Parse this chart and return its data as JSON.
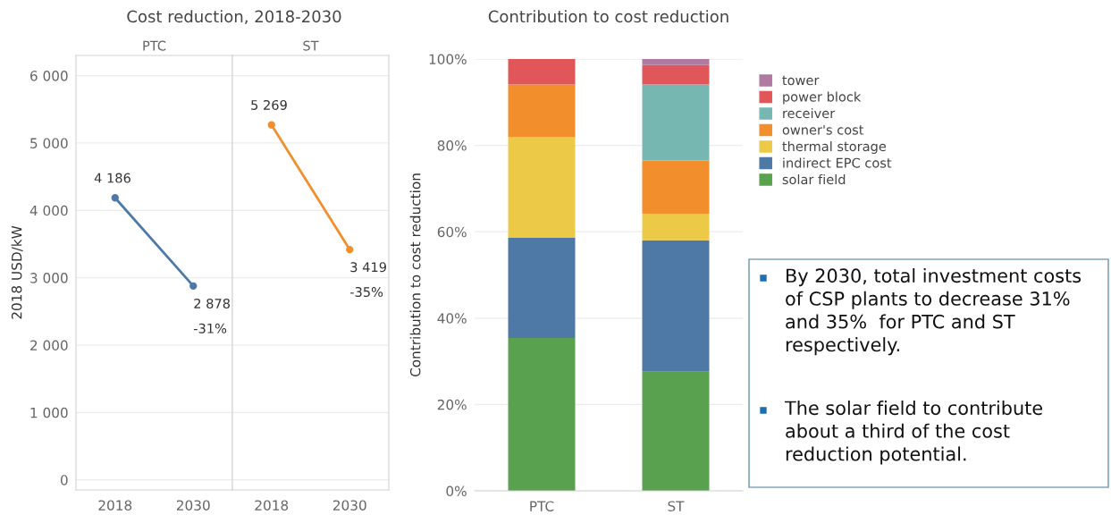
{
  "chart_data": [
    {
      "type": "line",
      "title": "Cost reduction, 2018-2030",
      "subtitle": "PTC",
      "ylabel": "2018 USD/kW",
      "categories": [
        "2018",
        "2030"
      ],
      "series": [
        {
          "color": "#4e79a7",
          "values": [
            4186,
            2878
          ],
          "value_labels": [
            "4 186",
            "2 878"
          ]
        }
      ],
      "annotations": [
        {
          "text": "-31%",
          "x": "2030",
          "y": 2878
        }
      ],
      "ylim": [
        -150,
        6300
      ],
      "yticks": [
        {
          "value": 0,
          "label": "0"
        },
        {
          "value": 1000,
          "label": "1 000"
        },
        {
          "value": 2000,
          "label": "2 000"
        },
        {
          "value": 3000,
          "label": "3 000"
        },
        {
          "value": 4000,
          "label": "4 000"
        },
        {
          "value": 5000,
          "label": "5 000"
        },
        {
          "value": 6000,
          "label": "6 000"
        }
      ],
      "grid": "y",
      "marker": "circle",
      "line_style": "solid"
    },
    {
      "type": "line",
      "subtitle": "ST",
      "categories": [
        "2018",
        "2030"
      ],
      "series": [
        {
          "color": "#f28e2b",
          "values": [
            5269,
            3419
          ],
          "value_labels": [
            "5 269",
            "3 419"
          ]
        }
      ],
      "annotations": [
        {
          "text": "-35%",
          "x": "2030",
          "y": 3419
        }
      ],
      "ylim": [
        -150,
        6300
      ],
      "yticks": [
        {
          "value": 0,
          "label": null
        },
        {
          "value": 1000,
          "label": null
        },
        {
          "value": 2000,
          "label": null
        },
        {
          "value": 3000,
          "label": null
        },
        {
          "value": 4000,
          "label": null
        },
        {
          "value": 5000,
          "label": null
        },
        {
          "value": 6000,
          "label": null
        }
      ],
      "tick_labels": "x",
      "grid": "y",
      "marker": "circle",
      "line_style": "solid"
    },
    {
      "type": "bar",
      "title": "Contribution to cost reduction",
      "ylabel": "Contribution to cost reduction",
      "categories": [
        "PTC",
        "ST"
      ],
      "stacked": true,
      "series": [
        {
          "name": "solar field",
          "color": "#59a14f",
          "values": [
            35.4,
            27.6
          ]
        },
        {
          "name": "indirect EPC cost",
          "color": "#4e79a7",
          "values": [
            23.2,
            30.4
          ]
        },
        {
          "name": "thermal storage",
          "color": "#edc948",
          "values": [
            23.3,
            6.2
          ]
        },
        {
          "name": "owner's cost",
          "color": "#f28e2b",
          "values": [
            12.2,
            12.3
          ]
        },
        {
          "name": "receiver",
          "color": "#76b7b2",
          "values": [
            null,
            17.6
          ]
        },
        {
          "name": "power block",
          "color": "#e15759",
          "values": [
            5.9,
            4.5
          ]
        },
        {
          "name": "tower",
          "color": "#b07aa1",
          "values": [
            null,
            1.4
          ]
        }
      ],
      "ylim": [
        0,
        100
      ],
      "yticks": [
        {
          "value": 0,
          "label": "0%"
        },
        {
          "value": 20,
          "label": "20%"
        },
        {
          "value": 40,
          "label": "40%"
        },
        {
          "value": 60,
          "label": "60%"
        },
        {
          "value": 80,
          "label": "80%"
        },
        {
          "value": 100,
          "label": "100%"
        }
      ],
      "grid": "y",
      "legend": "right",
      "annotations": [
        "By 2030, total investment costs\nof CSP plants to decrease 31%\nand 35%  for PTC and ST\nrespectively.",
        "The solar field to contribute\nabout a third of the cost\nreduction potential."
      ]
    }
  ]
}
